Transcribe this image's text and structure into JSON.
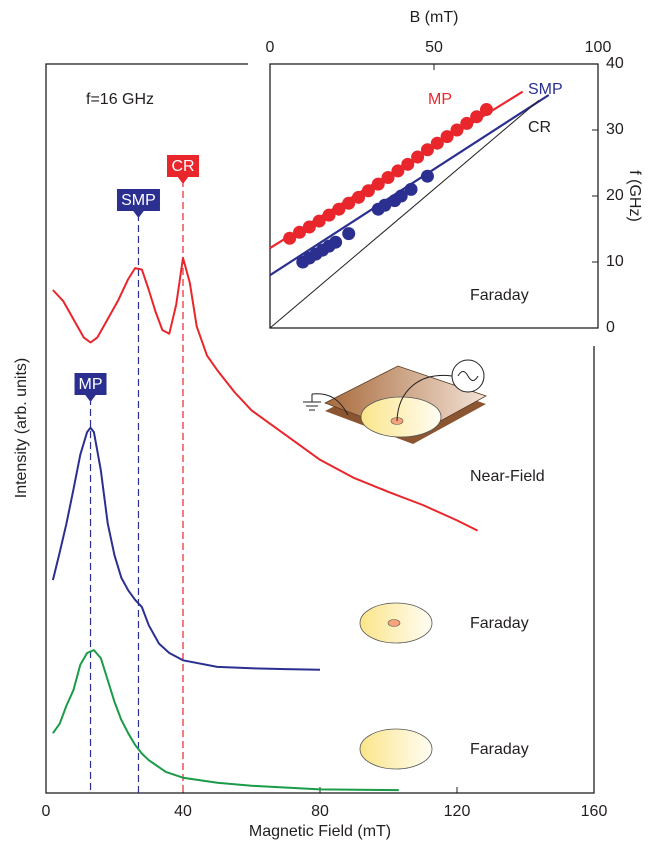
{
  "chart_data": [
    {
      "type": "line",
      "xlabel": "Magnetic Field (mT)",
      "ylabel": "Intensity (arb. units)",
      "annotation": "f=16 GHz",
      "xlim": [
        0,
        160
      ],
      "xticks": [
        0,
        40,
        80,
        120,
        160
      ],
      "ylim": [
        0,
        100
      ],
      "series": [
        {
          "name": "Near-Field",
          "color": "#e8262b",
          "x": [
            2,
            5,
            8,
            11,
            13,
            15,
            18,
            21,
            24,
            26,
            28,
            30,
            32,
            34,
            36,
            38,
            40,
            42,
            44,
            47,
            50,
            55,
            60,
            65,
            70,
            80,
            90,
            100,
            110,
            120,
            126
          ],
          "values": [
            69.0,
            67.5,
            65,
            62.5,
            61.8,
            62.5,
            65,
            67.5,
            70.5,
            72,
            71.8,
            69,
            66,
            63.5,
            63,
            67,
            73.4,
            70,
            64,
            60,
            58,
            55,
            52.5,
            50.8,
            49.1,
            45.7,
            43.2,
            41.3,
            39.5,
            37.4,
            36.0
          ]
        },
        {
          "name": "Faraday",
          "color": "#2b2f8f",
          "x": [
            2,
            4,
            6,
            8,
            10,
            12,
            13,
            14,
            16,
            18,
            20,
            22,
            24,
            26,
            28,
            30,
            33,
            36,
            40,
            50,
            60,
            70,
            80
          ],
          "values": [
            29.2,
            33,
            37,
            41.6,
            46.4,
            49.5,
            50.1,
            49.5,
            44.3,
            37,
            32.6,
            29.5,
            27.8,
            26.5,
            25.5,
            23,
            20.5,
            19.2,
            18.2,
            17.3,
            17.1,
            17.0,
            16.9
          ]
        },
        {
          "name": "Faraday",
          "color": "#1a9b48",
          "x": [
            2,
            4,
            6,
            8,
            10,
            12,
            14,
            16,
            18,
            20,
            22,
            24,
            26,
            28,
            30,
            35,
            40,
            50,
            60,
            80,
            103
          ],
          "values": [
            8.2,
            9.5,
            12,
            14.1,
            17.6,
            19.2,
            19.6,
            18.5,
            15.5,
            12.5,
            10,
            8.2,
            6.6,
            5.4,
            4.5,
            2.9,
            2.1,
            1.4,
            1.0,
            0.5,
            0.4
          ]
        }
      ],
      "markers": [
        {
          "label": "MP",
          "x": 13,
          "color": "#2b2f8f"
        },
        {
          "label": "SMP",
          "x": 27,
          "color": "#2b2f8f"
        },
        {
          "label": "CR",
          "x": 40,
          "color": "#e8262b"
        }
      ]
    },
    {
      "type": "scatter",
      "xlabel": "B (mT)",
      "ylabel": "f (GHz)",
      "annotation": "Faraday",
      "xlim": [
        0,
        100
      ],
      "xticks": [
        0,
        50,
        100
      ],
      "ylim": [
        0,
        40
      ],
      "yticks": [
        0,
        10,
        20,
        30,
        40
      ],
      "series": [
        {
          "name": "MP",
          "color": "#e8262b",
          "x": [
            6,
            9,
            12,
            15,
            18,
            21,
            24,
            27,
            30,
            33,
            36,
            39,
            42,
            45,
            48,
            51,
            54,
            57,
            60,
            63,
            66
          ],
          "values": [
            13.6,
            14.5,
            15.3,
            16.2,
            17.1,
            18.0,
            18.9,
            19.8,
            20.8,
            21.8,
            22.8,
            23.8,
            24.8,
            25.9,
            27.0,
            28.0,
            29.0,
            30.0,
            31.0,
            32.0,
            33.1
          ],
          "fit_x": [
            0,
            77
          ],
          "fit_values": [
            12.1,
            35.8
          ]
        },
        {
          "name": "SMP",
          "color": "#2b2f8f",
          "x": [
            10,
            12,
            14,
            16,
            18,
            20,
            24,
            33,
            35,
            38,
            40,
            43,
            48
          ],
          "values": [
            10.0,
            10.6,
            11.2,
            11.8,
            12.4,
            13.0,
            14.3,
            18.0,
            18.6,
            19.3,
            20.0,
            21.0,
            23.0
          ],
          "fit_x": [
            0,
            85
          ],
          "fit_values": [
            8.0,
            35.3
          ]
        },
        {
          "name": "CR",
          "color": "#231f20",
          "fit_x": [
            0,
            82
          ],
          "fit_values": [
            0,
            34.5
          ]
        }
      ]
    }
  ]
}
